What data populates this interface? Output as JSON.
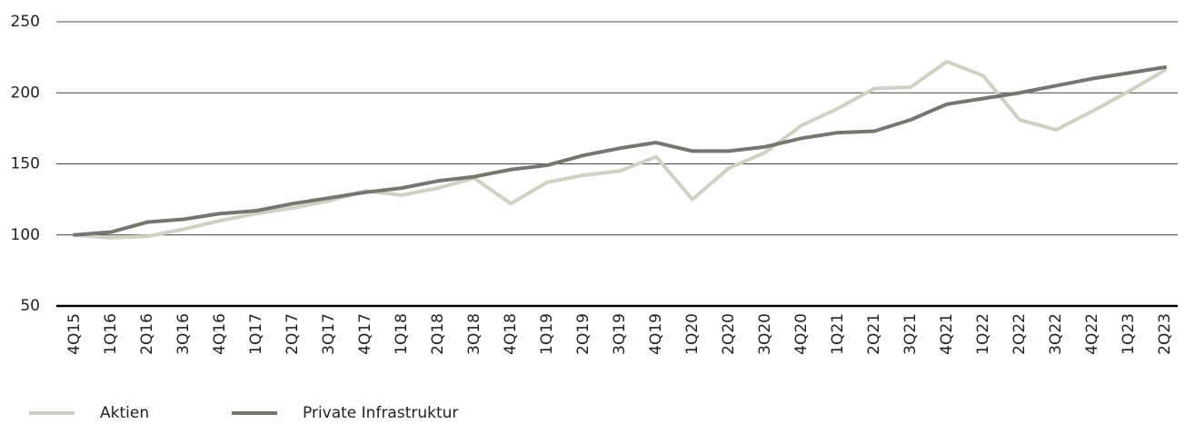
{
  "chart_data": {
    "type": "line",
    "categories": [
      "4Q15",
      "1Q16",
      "2Q16",
      "3Q16",
      "4Q16",
      "1Q17",
      "2Q17",
      "3Q17",
      "4Q17",
      "1Q18",
      "2Q18",
      "3Q18",
      "4Q18",
      "1Q19",
      "2Q19",
      "3Q19",
      "4Q19",
      "1Q20",
      "2Q20",
      "3Q20",
      "4Q20",
      "1Q21",
      "2Q21",
      "3Q21",
      "4Q21",
      "1Q22",
      "2Q22",
      "3Q22",
      "4Q22",
      "1Q23",
      "2Q23"
    ],
    "series": [
      {
        "name": "Aktien",
        "color": "#d0d0c5",
        "values": [
          100,
          98,
          99,
          104,
          110,
          115,
          119,
          124,
          131,
          128,
          133,
          140,
          122,
          137,
          142,
          145,
          155,
          125,
          147,
          158,
          177,
          189,
          203,
          204,
          222,
          212,
          181,
          174,
          187,
          201,
          216
        ]
      },
      {
        "name": "Private Infrastruktur",
        "color": "#77756f",
        "values": [
          100,
          102,
          109,
          111,
          115,
          117,
          122,
          126,
          130,
          133,
          138,
          141,
          146,
          149,
          156,
          161,
          165,
          159,
          159,
          162,
          168,
          172,
          173,
          181,
          192,
          196,
          200,
          205,
          210,
          214,
          218
        ]
      }
    ],
    "ylim": [
      50,
      250
    ],
    "yticks": [
      50,
      100,
      150,
      200,
      250
    ],
    "grid": true,
    "legend": "bottom-left"
  }
}
